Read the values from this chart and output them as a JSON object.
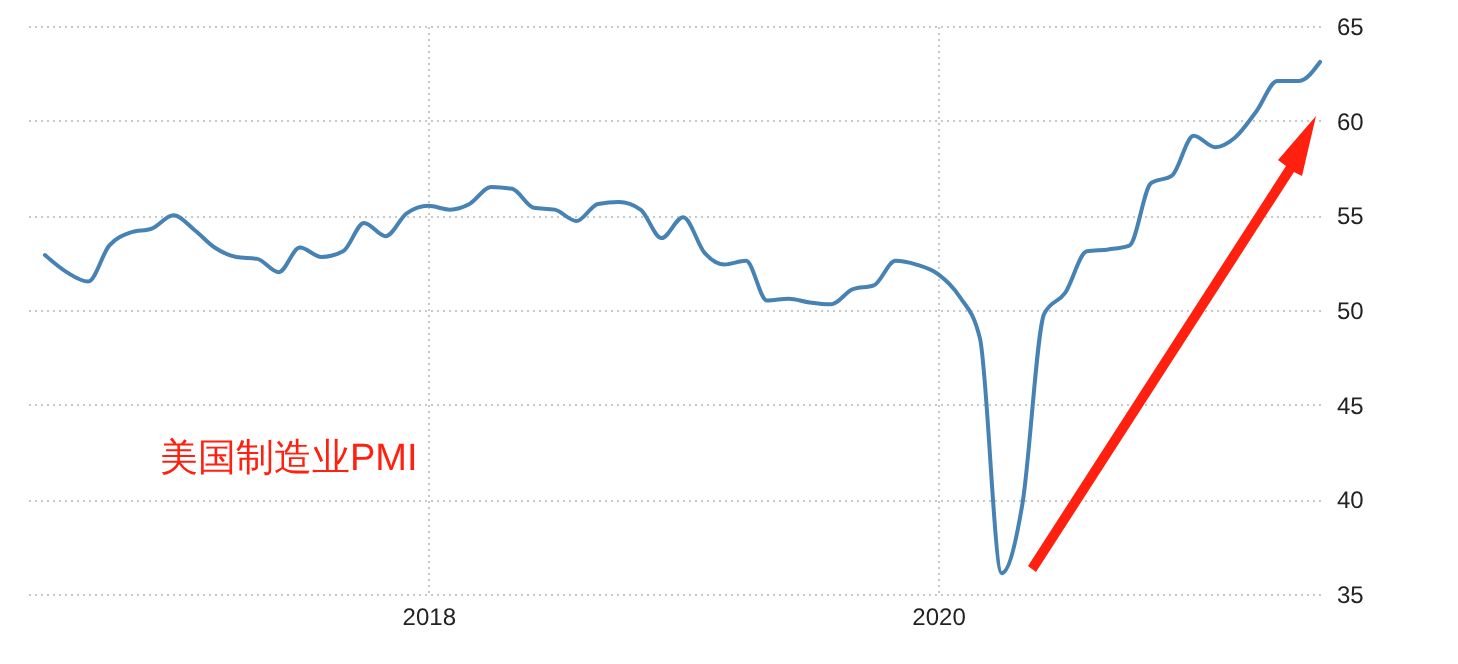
{
  "chart_data": {
    "type": "line",
    "x": [
      "2016-07",
      "2016-08",
      "2016-09",
      "2016-10",
      "2016-11",
      "2016-12",
      "2017-01",
      "2017-02",
      "2017-03",
      "2017-04",
      "2017-05",
      "2017-06",
      "2017-07",
      "2017-08",
      "2017-09",
      "2017-10",
      "2017-11",
      "2017-12",
      "2018-01",
      "2018-02",
      "2018-03",
      "2018-04",
      "2018-05",
      "2018-06",
      "2018-07",
      "2018-08",
      "2018-09",
      "2018-10",
      "2018-11",
      "2018-12",
      "2019-01",
      "2019-02",
      "2019-03",
      "2019-04",
      "2019-05",
      "2019-06",
      "2019-07",
      "2019-08",
      "2019-09",
      "2019-10",
      "2019-11",
      "2019-12",
      "2020-01",
      "2020-02",
      "2020-03",
      "2020-04",
      "2020-05",
      "2020-06",
      "2020-07",
      "2020-08",
      "2020-09",
      "2020-10",
      "2020-11",
      "2020-12",
      "2021-01",
      "2021-02",
      "2021-03",
      "2021-04",
      "2021-05",
      "2021-06",
      "2021-07"
    ],
    "series": [
      {
        "color": "#4682b4",
        "values": [
          52.9,
          52.0,
          51.5,
          53.4,
          54.1,
          54.3,
          55.0,
          54.2,
          53.3,
          52.8,
          52.7,
          52.0,
          53.3,
          52.8,
          53.1,
          54.6,
          53.9,
          55.1,
          55.5,
          55.3,
          55.6,
          56.5,
          56.4,
          55.4,
          55.3,
          54.7,
          55.6,
          55.7,
          55.3,
          53.8,
          54.9,
          53.0,
          52.4,
          52.6,
          50.5,
          50.6,
          50.4,
          50.3,
          51.1,
          51.3,
          52.6,
          52.4,
          51.9,
          50.7,
          48.5,
          36.1,
          39.8,
          49.8,
          50.9,
          53.1,
          53.2,
          53.4,
          56.7,
          57.1,
          59.2,
          58.6,
          59.1,
          60.5,
          62.1,
          62.1,
          63.1
        ]
      }
    ],
    "xlim": [
      "2016-06",
      "2021-07"
    ],
    "xticks": [
      {
        "value": "2018-01",
        "label": "2018"
      },
      {
        "value": "2020-01",
        "label": "2020"
      }
    ],
    "ylim": [
      35,
      65
    ],
    "yticks": [
      35,
      40,
      45,
      50,
      55,
      60,
      65
    ],
    "grid": true,
    "marker": "none",
    "line_style": "solid",
    "annotations": [
      "美国制造业PMI"
    ]
  }
}
